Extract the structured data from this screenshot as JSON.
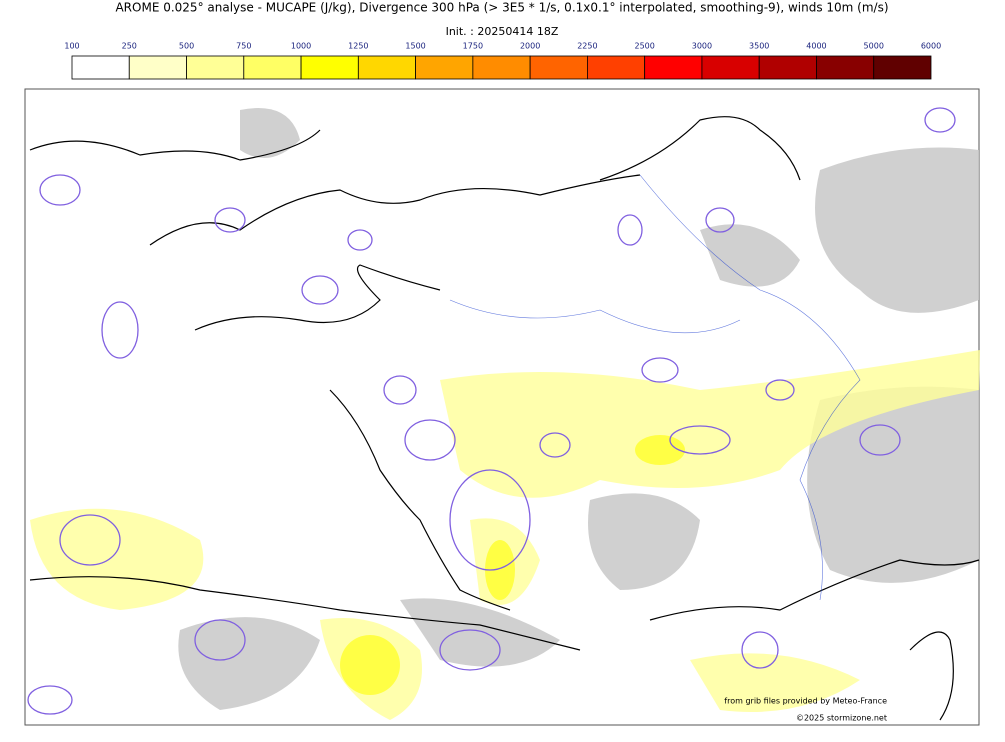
{
  "header": {
    "title": "AROME 0.025° analyse - MUCAPE (J/kg), Divergence 300 hPa (> 3E5 * 1/s, 0.1x0.1° interpolated, smoothing-9), winds 10m (m/s)",
    "subtitle": "Init. : 20250414 18Z"
  },
  "colorbar": {
    "ticks": [
      100,
      250,
      500,
      750,
      1000,
      1250,
      1500,
      1750,
      2000,
      2250,
      2500,
      3000,
      3500,
      4000,
      5000,
      6000
    ],
    "colors": [
      "#ffffff",
      "#ffffc8",
      "#ffff96",
      "#ffff64",
      "#ffff00",
      "#ffd700",
      "#ffa500",
      "#ff8c00",
      "#ff6400",
      "#ff4000",
      "#ff0000",
      "#d80000",
      "#b00000",
      "#880000",
      "#600000"
    ]
  },
  "credits": [
    "from grib files provided by Meteo-France",
    "©2025 stormizone.net"
  ]
}
